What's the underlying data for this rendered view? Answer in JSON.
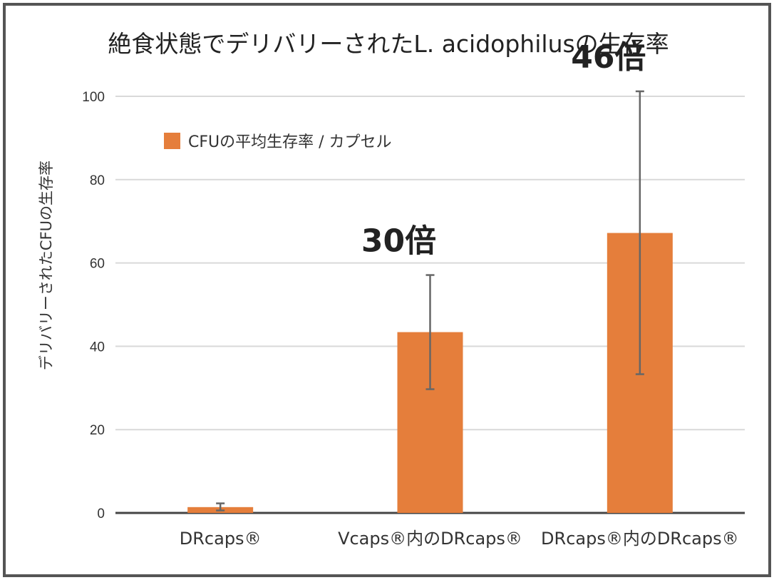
{
  "chart_data": {
    "type": "bar",
    "title": "絶食状態でデリバリーされたL. acidophilusの生存率",
    "ylabel": "デリバリーされたCFUの生存率",
    "xlabel": "",
    "categories": [
      "DRcaps®",
      "Vcaps®内のDRcaps®",
      "DRcaps®内のDRcaps®"
    ],
    "series": [
      {
        "name": "CFUの平均生存率 / カプセル",
        "values": [
          1.4,
          43.4,
          67.2
        ],
        "error_low": [
          0.6,
          29.7,
          33.3
        ],
        "error_high": [
          2.3,
          57.1,
          101.2
        ]
      }
    ],
    "ylim": [
      0,
      100
    ],
    "yticks": [
      0,
      20,
      40,
      60,
      80,
      100
    ],
    "grid": true,
    "legend_position": "top-left",
    "annotations": [
      "",
      "30倍",
      "46倍"
    ],
    "bar_color": "#E57E3B",
    "error_color": "#666666"
  }
}
